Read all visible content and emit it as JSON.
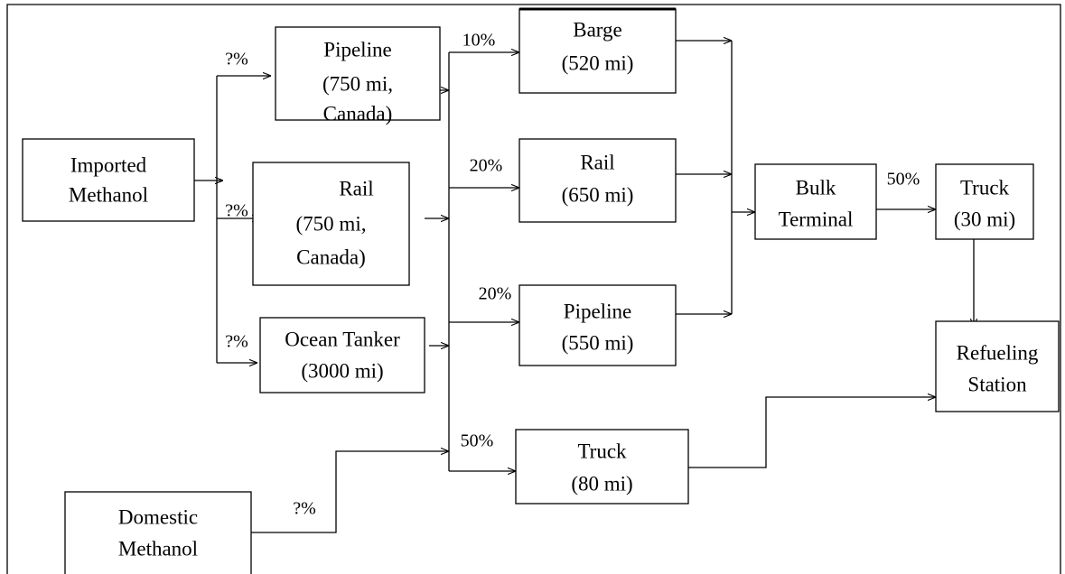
{
  "nodes": [
    {
      "id": "imported",
      "lines": [
        "Imported",
        "Methanol"
      ]
    },
    {
      "id": "pipeline1",
      "lines": [
        "Pipeline",
        "(750 mi,",
        "Canada)"
      ]
    },
    {
      "id": "rail1",
      "lines": [
        "Rail",
        "(750 mi,",
        "Canada)"
      ]
    },
    {
      "id": "ocean",
      "lines": [
        "Ocean Tanker",
        "(3000 mi)"
      ]
    },
    {
      "id": "domestic",
      "lines": [
        "Domestic",
        "Methanol"
      ]
    },
    {
      "id": "barge",
      "lines": [
        "Barge",
        "(520 mi)"
      ]
    },
    {
      "id": "rail2",
      "lines": [
        "Rail",
        "(650 mi)"
      ]
    },
    {
      "id": "pipeline2",
      "lines": [
        "Pipeline",
        "(550 mi)"
      ]
    },
    {
      "id": "truck80",
      "lines": [
        "Truck",
        "(80 mi)"
      ]
    },
    {
      "id": "bulk",
      "lines": [
        "Bulk",
        "Terminal"
      ]
    },
    {
      "id": "truck30",
      "lines": [
        "Truck",
        "(30 mi)"
      ]
    },
    {
      "id": "station",
      "lines": [
        "Refueling",
        "Station"
      ]
    }
  ],
  "edge_labels": [
    "?%",
    "?%",
    "?%",
    "?%",
    "10%",
    "20%",
    "20%",
    "50%",
    "50%"
  ]
}
